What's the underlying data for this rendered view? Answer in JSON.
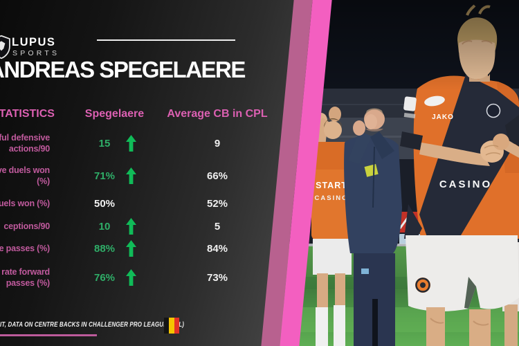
{
  "brand": {
    "name": "LUPUS",
    "subtitle": "SPORTS"
  },
  "page_title": "ANDREAS SPEGELAERE",
  "chart_data": {
    "type": "table",
    "title": "ANDREAS SPEGELAERE",
    "columns": [
      "STATISTICS",
      "Spegelaere",
      "Average CB in CPL"
    ],
    "rows": [
      {
        "label": [
          "ful defensive",
          "actions/90"
        ],
        "player": "15",
        "average": "9",
        "arrow_up": true
      },
      {
        "label": [
          "ve duels won",
          "(%)"
        ],
        "player": "71%",
        "average": "66%",
        "arrow_up": true
      },
      {
        "label": [
          "uels won (%)"
        ],
        "player": "50%",
        "average": "52%",
        "arrow_up": false
      },
      {
        "label": [
          "ceptions/90"
        ],
        "player": "10",
        "average": "5",
        "arrow_up": true
      },
      {
        "label": [
          "e passes (%)"
        ],
        "player": "88%",
        "average": "84%",
        "arrow_up": true
      },
      {
        "label": [
          "rate forward",
          "passes (%)"
        ],
        "player": "76%",
        "average": "73%",
        "arrow_up": true
      }
    ],
    "legend_position": "none",
    "grid": false
  },
  "footer": {
    "note": "IT, DATA ON CENTRE BACKS IN CHALLENGER PRO LEAGUE (CPL)",
    "flag": "belgium-flag"
  },
  "photo": {
    "description": "Footballers in orange kits and coach in navy applauding fans on pitch at night",
    "visible_text": {
      "bib": [
        "START",
        "CASINO"
      ],
      "jersey_brand": "JAKO",
      "jersey_sponsor": "CASINO"
    }
  },
  "colors": {
    "pink_header": "#dc60b2",
    "pink_label": "#c05a9d",
    "green_value": "#2fae68",
    "green_arrow": "#10bb58",
    "stripe_pink": "#f35fc0",
    "stripe_mauve": "#b8618f",
    "white_value": "#f2f2f2",
    "jersey_orange": "#e0702a"
  }
}
